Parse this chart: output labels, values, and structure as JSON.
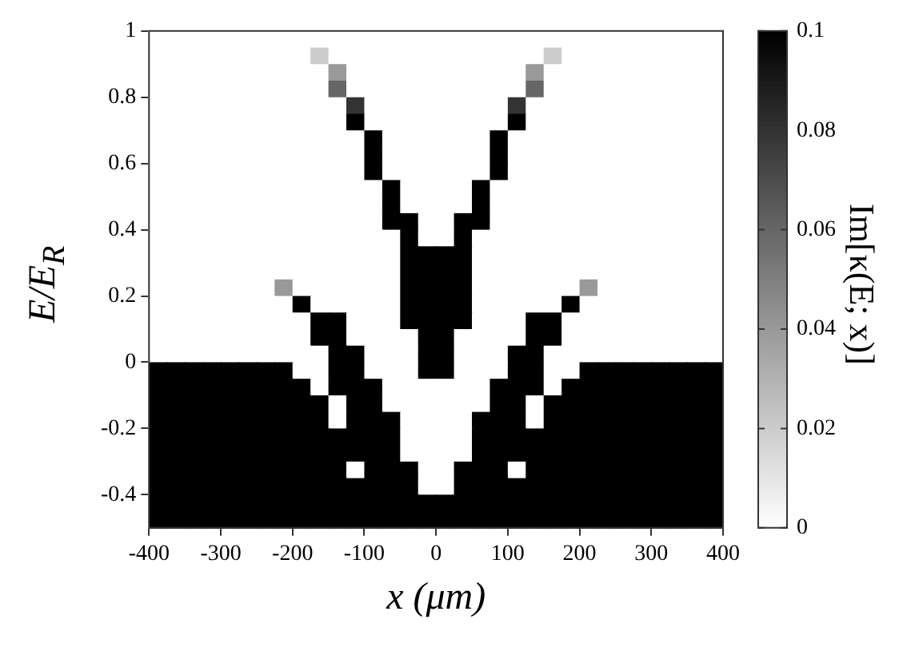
{
  "chart_data": {
    "type": "heatmap",
    "xlabel": "x (μm)",
    "ylabel": "E/E$_{R}$",
    "clabel": "Im[κ(E; x)]",
    "xlim": [
      -400,
      400
    ],
    "xticks": [
      -400,
      -300,
      -200,
      -100,
      0,
      100,
      200,
      300,
      400
    ],
    "ylim": [
      -0.5,
      1
    ],
    "yticks": [
      -0.4,
      -0.2,
      0,
      0.2,
      0.4,
      0.6,
      0.8,
      1
    ],
    "clim": [
      0,
      0.1
    ],
    "cticks": [
      0,
      0.02,
      0.04,
      0.06,
      0.08,
      0.1
    ],
    "cells": [
      [
        0,
        0,
        0,
        0,
        0,
        0,
        0,
        0,
        0,
        0,
        0,
        0,
        0,
        0,
        0,
        0,
        0,
        0,
        0,
        0,
        0,
        0,
        0,
        0,
        0,
        0,
        0,
        0,
        0,
        0,
        0,
        0
      ],
      [
        0,
        0,
        0,
        0,
        0,
        0,
        0,
        0,
        0,
        0.02,
        0,
        0,
        0,
        0,
        0,
        0,
        0,
        0,
        0,
        0,
        0,
        0,
        0.02,
        0,
        0,
        0,
        0,
        0,
        0,
        0,
        0,
        0
      ],
      [
        0,
        0,
        0,
        0,
        0,
        0,
        0,
        0,
        0,
        0,
        0.04,
        0,
        0,
        0,
        0,
        0,
        0,
        0,
        0,
        0,
        0,
        0.04,
        0,
        0,
        0,
        0,
        0,
        0,
        0,
        0,
        0,
        0
      ],
      [
        0,
        0,
        0,
        0,
        0,
        0,
        0,
        0,
        0,
        0,
        0.06,
        0,
        0,
        0,
        0,
        0,
        0,
        0,
        0,
        0,
        0,
        0.06,
        0,
        0,
        0,
        0,
        0,
        0,
        0,
        0,
        0,
        0
      ],
      [
        0,
        0,
        0,
        0,
        0,
        0,
        0,
        0,
        0,
        0,
        0,
        0.08,
        0,
        0,
        0,
        0,
        0,
        0,
        0,
        0,
        0.08,
        0,
        0,
        0,
        0,
        0,
        0,
        0,
        0,
        0,
        0,
        0
      ],
      [
        0,
        0,
        0,
        0,
        0,
        0,
        0,
        0,
        0,
        0,
        0,
        0.1,
        0,
        0,
        0,
        0,
        0,
        0,
        0,
        0,
        0.1,
        0,
        0,
        0,
        0,
        0,
        0,
        0,
        0,
        0,
        0,
        0
      ],
      [
        0,
        0,
        0,
        0,
        0,
        0,
        0,
        0,
        0,
        0,
        0,
        0,
        0.1,
        0,
        0,
        0,
        0,
        0,
        0,
        0.1,
        0,
        0,
        0,
        0,
        0,
        0,
        0,
        0,
        0,
        0,
        0,
        0
      ],
      [
        0,
        0,
        0,
        0,
        0,
        0,
        0,
        0,
        0,
        0,
        0,
        0,
        0.1,
        0,
        0,
        0,
        0,
        0,
        0,
        0.1,
        0,
        0,
        0,
        0,
        0,
        0,
        0,
        0,
        0,
        0,
        0,
        0
      ],
      [
        0,
        0,
        0,
        0,
        0,
        0,
        0,
        0,
        0,
        0,
        0,
        0,
        0.1,
        0,
        0,
        0,
        0,
        0,
        0,
        0.1,
        0,
        0,
        0,
        0,
        0,
        0,
        0,
        0,
        0,
        0,
        0,
        0
      ],
      [
        0,
        0,
        0,
        0,
        0,
        0,
        0,
        0,
        0,
        0,
        0,
        0,
        0,
        0.1,
        0,
        0,
        0,
        0,
        0.1,
        0,
        0,
        0,
        0,
        0,
        0,
        0,
        0,
        0,
        0,
        0,
        0,
        0
      ],
      [
        0,
        0,
        0,
        0,
        0,
        0,
        0,
        0,
        0,
        0,
        0,
        0,
        0,
        0.1,
        0,
        0,
        0,
        0,
        0.1,
        0,
        0,
        0,
        0,
        0,
        0,
        0,
        0,
        0,
        0,
        0,
        0,
        0
      ],
      [
        0,
        0,
        0,
        0,
        0,
        0,
        0,
        0,
        0,
        0,
        0,
        0,
        0,
        0.1,
        0.1,
        0,
        0,
        0.1,
        0.1,
        0,
        0,
        0,
        0,
        0,
        0,
        0,
        0,
        0,
        0,
        0,
        0,
        0
      ],
      [
        0,
        0,
        0,
        0,
        0,
        0,
        0,
        0,
        0,
        0,
        0,
        0,
        0,
        0,
        0.1,
        0,
        0,
        0.1,
        0,
        0,
        0,
        0,
        0,
        0,
        0,
        0,
        0,
        0,
        0,
        0,
        0,
        0
      ],
      [
        0,
        0,
        0,
        0,
        0,
        0,
        0,
        0,
        0,
        0,
        0,
        0,
        0,
        0,
        0.1,
        0.1,
        0.1,
        0.1,
        0,
        0,
        0,
        0,
        0,
        0,
        0,
        0,
        0,
        0,
        0,
        0,
        0,
        0
      ],
      [
        0,
        0,
        0,
        0,
        0,
        0,
        0,
        0,
        0,
        0,
        0,
        0,
        0,
        0,
        0.1,
        0.1,
        0.1,
        0.1,
        0,
        0,
        0,
        0,
        0,
        0,
        0,
        0,
        0,
        0,
        0,
        0,
        0,
        0
      ],
      [
        0,
        0,
        0,
        0,
        0,
        0,
        0,
        0.04,
        0,
        0,
        0,
        0,
        0,
        0,
        0.1,
        0.1,
        0.1,
        0.1,
        0,
        0,
        0,
        0,
        0,
        0,
        0.04,
        0,
        0,
        0,
        0,
        0,
        0,
        0
      ],
      [
        0,
        0,
        0,
        0,
        0,
        0,
        0,
        0,
        0.1,
        0,
        0,
        0,
        0,
        0,
        0.1,
        0.1,
        0.1,
        0.1,
        0,
        0,
        0,
        0,
        0,
        0.1,
        0,
        0,
        0,
        0,
        0,
        0,
        0,
        0
      ],
      [
        0,
        0,
        0,
        0,
        0,
        0,
        0,
        0,
        0,
        0.1,
        0.1,
        0,
        0,
        0,
        0.1,
        0.1,
        0.1,
        0.1,
        0,
        0,
        0,
        0.1,
        0.1,
        0,
        0,
        0,
        0,
        0,
        0,
        0,
        0,
        0
      ],
      [
        0,
        0,
        0,
        0,
        0,
        0,
        0,
        0,
        0,
        0.1,
        0.1,
        0,
        0,
        0,
        0,
        0.1,
        0.1,
        0,
        0,
        0,
        0,
        0.1,
        0.1,
        0,
        0,
        0,
        0,
        0,
        0,
        0,
        0,
        0
      ],
      [
        0,
        0,
        0,
        0,
        0,
        0,
        0,
        0,
        0,
        0,
        0.1,
        0.1,
        0,
        0,
        0,
        0.1,
        0.1,
        0,
        0,
        0,
        0.1,
        0.1,
        0,
        0,
        0,
        0,
        0,
        0,
        0,
        0,
        0,
        0
      ],
      [
        0.1,
        0.1,
        0.1,
        0.1,
        0.1,
        0.1,
        0.1,
        0.1,
        0,
        0,
        0.1,
        0.1,
        0,
        0,
        0,
        0.1,
        0.1,
        0,
        0,
        0,
        0.1,
        0.1,
        0,
        0,
        0.1,
        0.1,
        0.1,
        0.1,
        0.1,
        0.1,
        0.1,
        0.1
      ],
      [
        0.1,
        0.1,
        0.1,
        0.1,
        0.1,
        0.1,
        0.1,
        0.1,
        0.1,
        0,
        0.1,
        0.1,
        0.1,
        0,
        0,
        0,
        0,
        0,
        0,
        0.1,
        0.1,
        0.1,
        0,
        0.1,
        0.1,
        0.1,
        0.1,
        0.1,
        0.1,
        0.1,
        0.1,
        0.1
      ],
      [
        0.1,
        0.1,
        0.1,
        0.1,
        0.1,
        0.1,
        0.1,
        0.1,
        0.1,
        0.1,
        0,
        0.1,
        0.1,
        0,
        0,
        0,
        0,
        0,
        0,
        0.1,
        0.1,
        0,
        0.1,
        0.1,
        0.1,
        0.1,
        0.1,
        0.1,
        0.1,
        0.1,
        0.1,
        0.1
      ],
      [
        0.1,
        0.1,
        0.1,
        0.1,
        0.1,
        0.1,
        0.1,
        0.1,
        0.1,
        0.1,
        0,
        0.1,
        0.1,
        0.1,
        0,
        0,
        0,
        0,
        0.1,
        0.1,
        0.1,
        0,
        0.1,
        0.1,
        0.1,
        0.1,
        0.1,
        0.1,
        0.1,
        0.1,
        0.1,
        0.1
      ],
      [
        0.1,
        0.1,
        0.1,
        0.1,
        0.1,
        0.1,
        0.1,
        0.1,
        0.1,
        0.1,
        0.1,
        0.1,
        0.1,
        0.1,
        0,
        0,
        0,
        0,
        0.1,
        0.1,
        0.1,
        0.1,
        0.1,
        0.1,
        0.1,
        0.1,
        0.1,
        0.1,
        0.1,
        0.1,
        0.1,
        0.1
      ],
      [
        0.1,
        0.1,
        0.1,
        0.1,
        0.1,
        0.1,
        0.1,
        0.1,
        0.1,
        0.1,
        0.1,
        0.1,
        0.1,
        0.1,
        0,
        0,
        0,
        0,
        0.1,
        0.1,
        0.1,
        0.1,
        0.1,
        0.1,
        0.1,
        0.1,
        0.1,
        0.1,
        0.1,
        0.1,
        0.1,
        0.1
      ],
      [
        0.1,
        0.1,
        0.1,
        0.1,
        0.1,
        0.1,
        0.1,
        0.1,
        0.1,
        0.1,
        0.1,
        0,
        0.1,
        0.1,
        0.1,
        0,
        0,
        0.1,
        0.1,
        0.1,
        0,
        0.1,
        0.1,
        0.1,
        0.1,
        0.1,
        0.1,
        0.1,
        0.1,
        0.1,
        0.1,
        0.1
      ],
      [
        0.1,
        0.1,
        0.1,
        0.1,
        0.1,
        0.1,
        0.1,
        0.1,
        0.1,
        0.1,
        0.1,
        0.1,
        0.1,
        0.1,
        0.1,
        0,
        0,
        0.1,
        0.1,
        0.1,
        0.1,
        0.1,
        0.1,
        0.1,
        0.1,
        0.1,
        0.1,
        0.1,
        0.1,
        0.1,
        0.1,
        0.1
      ],
      [
        0.1,
        0.1,
        0.1,
        0.1,
        0.1,
        0.1,
        0.1,
        0.1,
        0.1,
        0.1,
        0.1,
        0.1,
        0.1,
        0.1,
        0.1,
        0.1,
        0.1,
        0.1,
        0.1,
        0.1,
        0.1,
        0.1,
        0.1,
        0.1,
        0.1,
        0.1,
        0.1,
        0.1,
        0.1,
        0.1,
        0.1,
        0.1
      ],
      [
        0.1,
        0.1,
        0.1,
        0.1,
        0.1,
        0.1,
        0.1,
        0.1,
        0.1,
        0.1,
        0.1,
        0.1,
        0.1,
        0.1,
        0.1,
        0.1,
        0.1,
        0.1,
        0.1,
        0.1,
        0.1,
        0.1,
        0.1,
        0.1,
        0.1,
        0.1,
        0.1,
        0.1,
        0.1,
        0.1,
        0.1,
        0.1
      ]
    ]
  }
}
